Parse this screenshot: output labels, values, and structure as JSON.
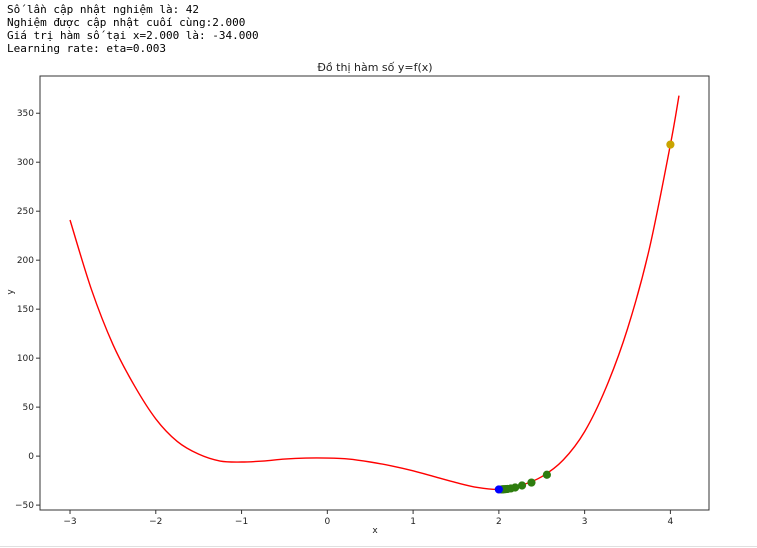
{
  "output": {
    "lines": [
      "Số lần cập nhật nghiệm là: 42",
      "Nghiệm được cập nhật cuối cùng:2.000",
      "Giá trị hàm số tại x=2.000 là: -34.000",
      "Learning rate: eta=0.003"
    ]
  },
  "chart_data": {
    "type": "line",
    "title": "Đồ thị hàm số y=f(x)",
    "xlabel": "x",
    "ylabel": "y",
    "xlim": [
      -3.35,
      4.45
    ],
    "ylim": [
      -55,
      388
    ],
    "xticks": [
      -3,
      -2,
      -1,
      0,
      1,
      2,
      3,
      4
    ],
    "yticks": [
      -50,
      0,
      50,
      100,
      150,
      200,
      250,
      300,
      350
    ],
    "grid": false,
    "series": [
      {
        "kind": "line",
        "color": "#ff0000",
        "x": [
          -3.0,
          -2.75,
          -2.5,
          -2.25,
          -2.0,
          -1.75,
          -1.5,
          -1.25,
          -1.0,
          -0.75,
          -0.5,
          -0.25,
          0.0,
          0.25,
          0.5,
          0.75,
          1.0,
          1.25,
          1.5,
          1.75,
          2.0,
          2.25,
          2.5,
          2.75,
          3.0,
          3.25,
          3.5,
          3.75,
          4.0,
          4.1
        ],
        "y": [
          241,
          170,
          114,
          72,
          38,
          15,
          2,
          -5,
          -6,
          -5,
          -3,
          -2,
          -2,
          -3,
          -6,
          -10,
          -15,
          -21,
          -27,
          -32,
          -34,
          -30,
          -21,
          -4,
          25,
          70,
          130,
          210,
          318,
          368
        ]
      },
      {
        "kind": "points",
        "label_role": "start",
        "color": "#c9a400",
        "x": [
          4.0
        ],
        "y": [
          318
        ]
      },
      {
        "kind": "points",
        "label_role": "iterations",
        "color": "#2e7d0f",
        "x": [
          2.56,
          2.38,
          2.27,
          2.19,
          2.14,
          2.1,
          2.08,
          2.06,
          2.05,
          2.04,
          2.03
        ],
        "y": [
          -19,
          -27,
          -30,
          -32,
          -33,
          -33.5,
          -33.7,
          -33.8,
          -33.9,
          -33.9,
          -34
        ]
      },
      {
        "kind": "points",
        "label_role": "final",
        "color": "#0000ff",
        "x": [
          2.0
        ],
        "y": [
          -34
        ]
      }
    ]
  }
}
